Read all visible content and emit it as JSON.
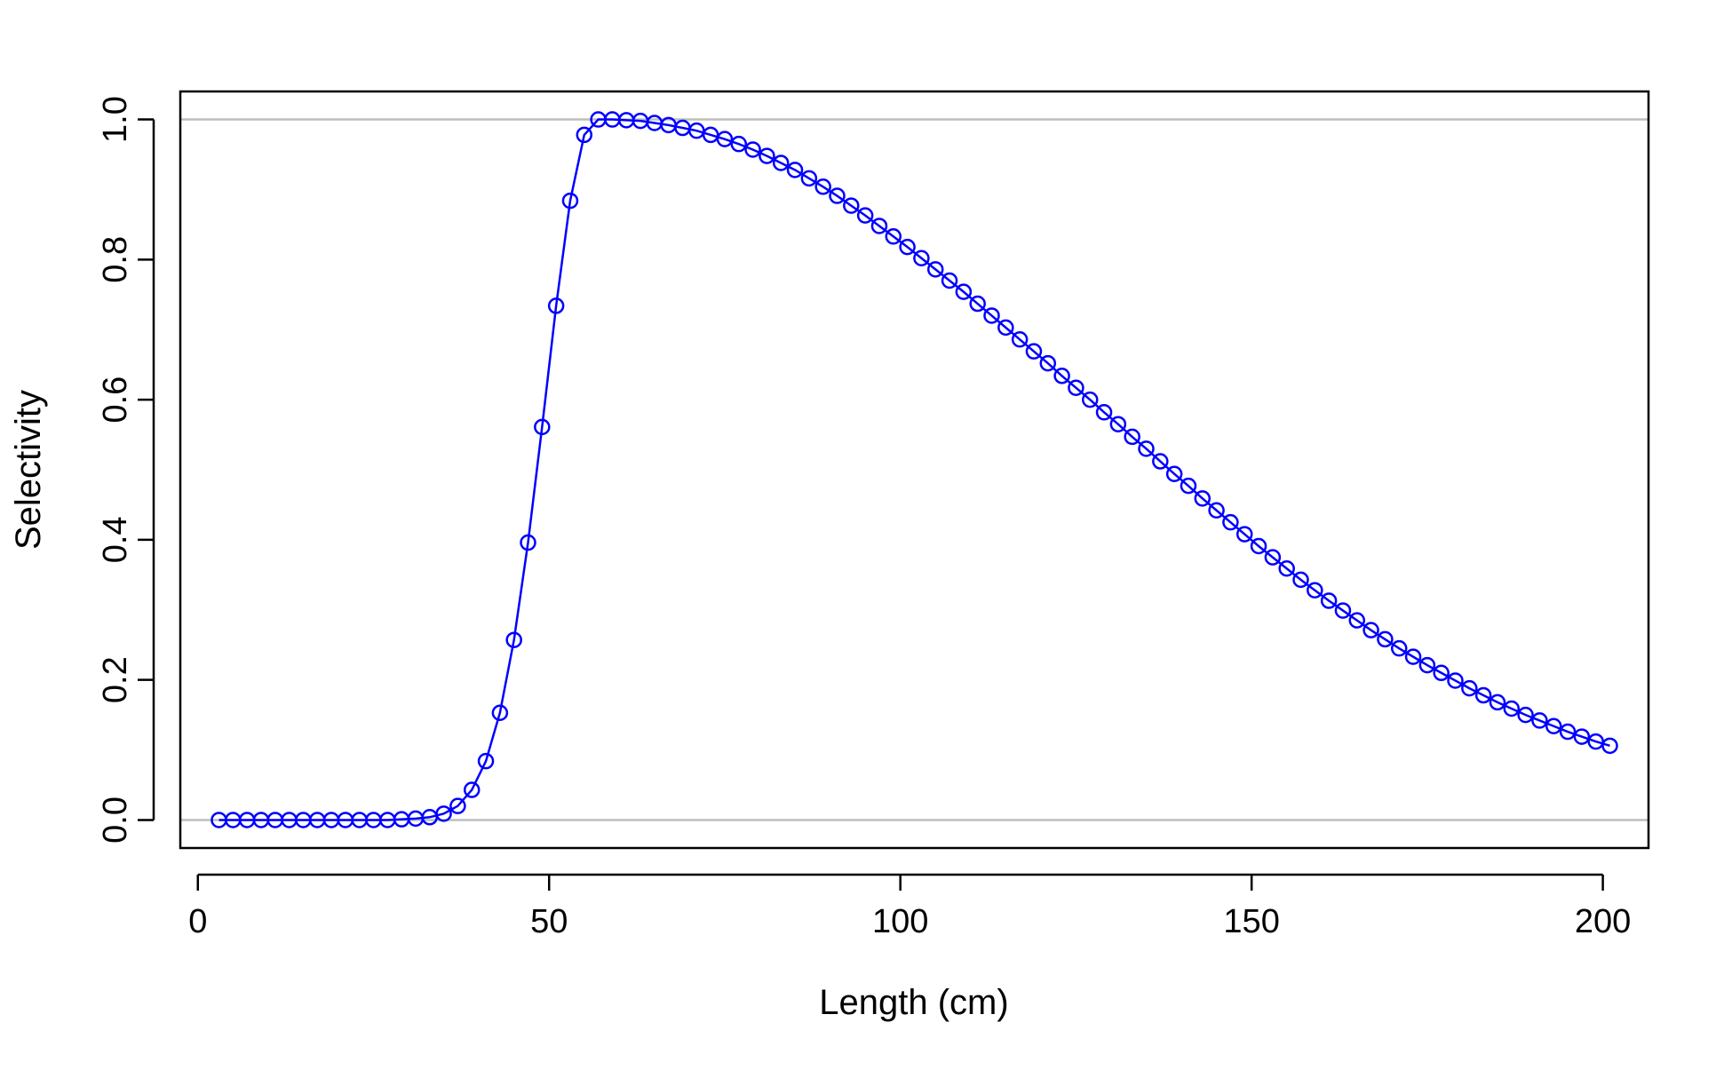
{
  "chart_data": {
    "type": "line",
    "title": "",
    "xlabel": "Length (cm)",
    "ylabel": "Selectivity",
    "xlim": [
      -2.5,
      206.5
    ],
    "ylim": [
      -0.04,
      1.04
    ],
    "xticks": [
      0,
      50,
      100,
      150,
      200
    ],
    "xtick_labels": [
      "0",
      "50",
      "100",
      "150",
      "200"
    ],
    "yticks": [
      0.0,
      0.2,
      0.4,
      0.6,
      0.8,
      1.0
    ],
    "ytick_labels": [
      "0.0",
      "0.2",
      "0.4",
      "0.6",
      "0.8",
      "1.0"
    ],
    "reference_lines": [
      0,
      1
    ],
    "reference_line_color": "#bebebe",
    "series_color": "#0000ff",
    "marker": "open-circle",
    "grid": false,
    "legend": "none",
    "series": [
      {
        "x": [
          3,
          5,
          7,
          9,
          11,
          13,
          15,
          17,
          19,
          21,
          23,
          25,
          27,
          29,
          31,
          33,
          35,
          37,
          39,
          41,
          43,
          45,
          47,
          49,
          51,
          53,
          55,
          57,
          59,
          61,
          63,
          65,
          67,
          69,
          71,
          73,
          75,
          77,
          79,
          81,
          83,
          85,
          87,
          89,
          91,
          93,
          95,
          97,
          99,
          101,
          103,
          105,
          107,
          109,
          111,
          113,
          115,
          117,
          119,
          121,
          123,
          125,
          127,
          129,
          131,
          133,
          135,
          137,
          139,
          141,
          143,
          145,
          147,
          149,
          151,
          153,
          155,
          157,
          159,
          161,
          163,
          165,
          167,
          169,
          171,
          173,
          175,
          177,
          179,
          181,
          183,
          185,
          187,
          189,
          191,
          193,
          195,
          197,
          199,
          201
        ],
        "y": [
          0,
          0,
          0,
          0,
          0,
          0,
          0,
          0,
          0,
          0,
          0,
          0,
          0,
          0.001,
          0.002,
          0.004,
          0.009,
          0.02,
          0.043,
          0.084,
          0.153,
          0.257,
          0.396,
          0.561,
          0.734,
          0.884,
          0.978,
          1.0,
          1.0,
          0.999,
          0.998,
          0.995,
          0.992,
          0.988,
          0.984,
          0.978,
          0.972,
          0.965,
          0.957,
          0.948,
          0.938,
          0.928,
          0.916,
          0.904,
          0.891,
          0.877,
          0.863,
          0.848,
          0.833,
          0.818,
          0.802,
          0.786,
          0.77,
          0.754,
          0.737,
          0.72,
          0.703,
          0.686,
          0.669,
          0.652,
          0.634,
          0.617,
          0.6,
          0.582,
          0.565,
          0.547,
          0.53,
          0.512,
          0.494,
          0.477,
          0.459,
          0.442,
          0.425,
          0.408,
          0.391,
          0.375,
          0.359,
          0.343,
          0.328,
          0.313,
          0.299,
          0.285,
          0.271,
          0.258,
          0.245,
          0.233,
          0.221,
          0.21,
          0.199,
          0.188,
          0.178,
          0.168,
          0.159,
          0.15,
          0.142,
          0.134,
          0.126,
          0.119,
          0.112,
          0.106
        ]
      }
    ]
  }
}
